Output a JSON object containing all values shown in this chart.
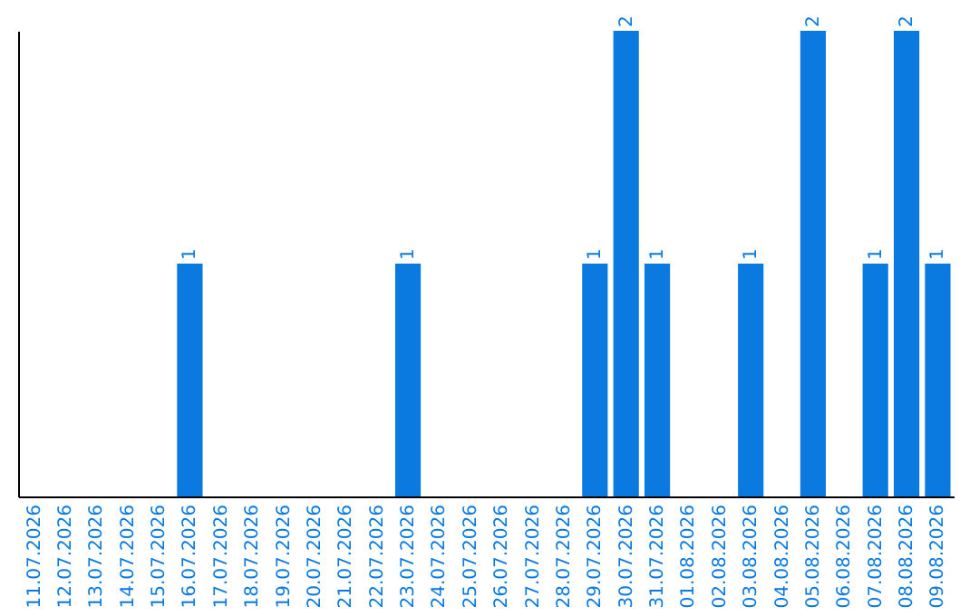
{
  "chart_data": {
    "type": "bar",
    "categories": [
      "11.07.2026",
      "12.07.2026",
      "13.07.2026",
      "14.07.2026",
      "15.07.2026",
      "16.07.2026",
      "17.07.2026",
      "18.07.2026",
      "19.07.2026",
      "20.07.2026",
      "21.07.2026",
      "22.07.2026",
      "23.07.2026",
      "24.07.2026",
      "25.07.2026",
      "26.07.2026",
      "27.07.2026",
      "28.07.2026",
      "29.07.2026",
      "30.07.2026",
      "31.07.2026",
      "01.08.2026",
      "02.08.2026",
      "03.08.2026",
      "04.08.2026",
      "05.08.2026",
      "06.08.2026",
      "07.08.2026",
      "08.08.2026",
      "09.08.2026"
    ],
    "values": [
      0,
      0,
      0,
      0,
      0,
      1,
      0,
      0,
      0,
      0,
      0,
      0,
      1,
      0,
      0,
      0,
      0,
      0,
      1,
      2,
      1,
      0,
      0,
      1,
      0,
      2,
      0,
      1,
      2,
      1
    ],
    "value_labels": [
      null,
      null,
      null,
      null,
      null,
      "1",
      null,
      null,
      null,
      null,
      null,
      null,
      "1",
      null,
      null,
      null,
      null,
      null,
      "1",
      "2",
      "1",
      null,
      null,
      "1",
      null,
      "2",
      null,
      "1",
      "2",
      "1"
    ],
    "color": "#0a7ae0",
    "ylim": [
      0,
      2
    ],
    "tick_labels": "x",
    "grid": false
  }
}
